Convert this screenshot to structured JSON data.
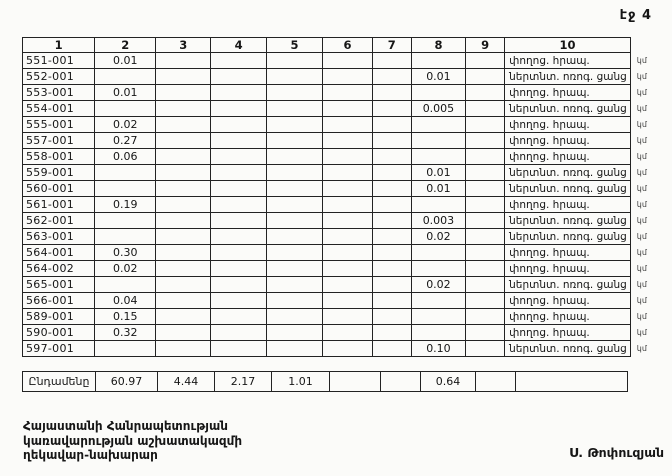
{
  "page": {
    "page_number_label": "էջ 4"
  },
  "table": {
    "column_headers": [
      "1",
      "2",
      "3",
      "4",
      "5",
      "6",
      "7",
      "8",
      "9",
      "10"
    ],
    "rows": [
      {
        "cells": [
          "551-001",
          "0.01",
          "",
          "",
          "",
          "",
          "",
          "",
          "",
          "փողոց. հրապ."
        ],
        "unit": "կմ"
      },
      {
        "cells": [
          "552-001",
          "",
          "",
          "",
          "",
          "",
          "",
          "0.01",
          "",
          "ներտնտ. ոռոգ. ցանց"
        ],
        "unit": "կմ"
      },
      {
        "cells": [
          "553-001",
          "0.01",
          "",
          "",
          "",
          "",
          "",
          "",
          "",
          "փողոց. հրապ."
        ],
        "unit": "կմ"
      },
      {
        "cells": [
          "554-001",
          "",
          "",
          "",
          "",
          "",
          "",
          "0.005",
          "",
          "ներտնտ. ոռոգ. ցանց"
        ],
        "unit": "կմ"
      },
      {
        "cells": [
          "555-001",
          "0.02",
          "",
          "",
          "",
          "",
          "",
          "",
          "",
          "փողոց. հրապ."
        ],
        "unit": "կմ"
      },
      {
        "cells": [
          "557-001",
          "0.27",
          "",
          "",
          "",
          "",
          "",
          "",
          "",
          "փողոց. հրապ."
        ],
        "unit": "կմ"
      },
      {
        "cells": [
          "558-001",
          "0.06",
          "",
          "",
          "",
          "",
          "",
          "",
          "",
          "փողոց. հրապ."
        ],
        "unit": "կմ"
      },
      {
        "cells": [
          "559-001",
          "",
          "",
          "",
          "",
          "",
          "",
          "0.01",
          "",
          "ներտնտ. ոռոգ. ցանց"
        ],
        "unit": "կմ"
      },
      {
        "cells": [
          "560-001",
          "",
          "",
          "",
          "",
          "",
          "",
          "0.01",
          "",
          "ներտնտ. ոռոգ. ցանց"
        ],
        "unit": "կմ"
      },
      {
        "cells": [
          "561-001",
          "0.19",
          "",
          "",
          "",
          "",
          "",
          "",
          "",
          "փողոց. հրապ."
        ],
        "unit": "կմ"
      },
      {
        "cells": [
          "562-001",
          "",
          "",
          "",
          "",
          "",
          "",
          "0.003",
          "",
          "ներտնտ. ոռոգ. ցանց"
        ],
        "unit": "կմ"
      },
      {
        "cells": [
          "563-001",
          "",
          "",
          "",
          "",
          "",
          "",
          "0.02",
          "",
          "ներտնտ. ոռոգ. ցանց"
        ],
        "unit": "կմ"
      },
      {
        "cells": [
          "564-001",
          "0.30",
          "",
          "",
          "",
          "",
          "",
          "",
          "",
          "փողոց. հրապ."
        ],
        "unit": "կմ"
      },
      {
        "cells": [
          "564-002",
          "0.02",
          "",
          "",
          "",
          "",
          "",
          "",
          "",
          "փողոց. հրապ."
        ],
        "unit": "կմ"
      },
      {
        "cells": [
          "565-001",
          "",
          "",
          "",
          "",
          "",
          "",
          "0.02",
          "",
          "ներտնտ. ոռոգ. ցանց"
        ],
        "unit": "կմ"
      },
      {
        "cells": [
          "566-001",
          "0.04",
          "",
          "",
          "",
          "",
          "",
          "",
          "",
          "փողոց. հրապ."
        ],
        "unit": "կմ"
      },
      {
        "cells": [
          "589-001",
          "0.15",
          "",
          "",
          "",
          "",
          "",
          "",
          "",
          "փողոց. հրապ."
        ],
        "unit": "կմ"
      },
      {
        "cells": [
          "590-001",
          "0.32",
          "",
          "",
          "",
          "",
          "",
          "",
          "",
          "փողոց. հրապ."
        ],
        "unit": "կմ"
      },
      {
        "cells": [
          "597-001",
          "",
          "",
          "",
          "",
          "",
          "",
          "0.10",
          "",
          "ներտնտ. ոռոգ. ցանց"
        ],
        "unit": "կմ"
      }
    ],
    "total_row": {
      "cells": [
        "Ընդամենը",
        "60.97",
        "4.44",
        "2.17",
        "1.01",
        "",
        "",
        "0.64",
        "",
        ""
      ]
    }
  },
  "footer": {
    "left_lines": [
      "Հայաստանի Հանրապետության",
      "կառավարության աշխատակազմի",
      "ղեկավար-նախարար"
    ],
    "signature": "Ս. Թոփուզյան"
  }
}
